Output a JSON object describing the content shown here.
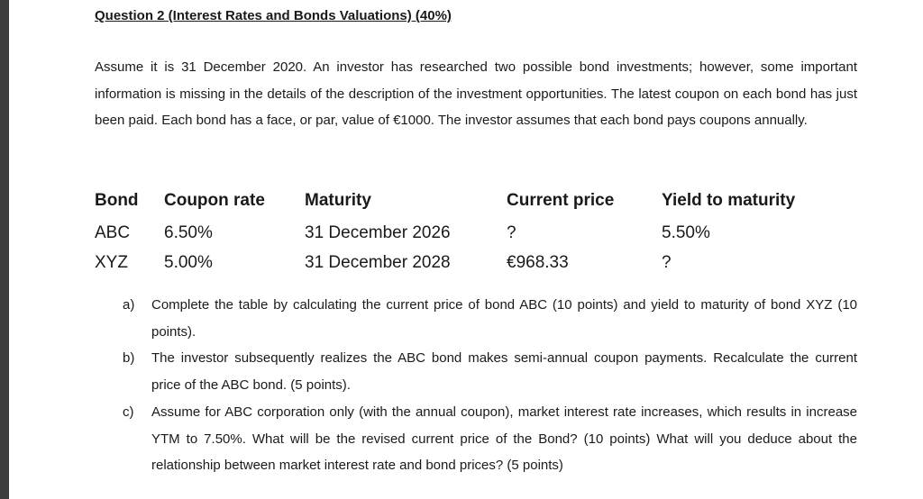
{
  "heading": "Question 2 (Interest Rates and Bonds Valuations) (40%)",
  "intro": "Assume it is 31 December 2020. An investor has researched two possible bond investments; however, some important information is missing in the details of the description of the investment opportunities. The latest coupon on each bond has just been paid. Each bond has a face, or par, value of €1000. The investor assumes that each bond pays coupons annually.",
  "table": {
    "headers": [
      "Bond",
      "Coupon rate",
      "Maturity",
      "Current price",
      "Yield to maturity"
    ],
    "rows": [
      [
        "ABC",
        "6.50%",
        "31 December 2026",
        "?",
        "5.50%"
      ],
      [
        "XYZ",
        "5.00%",
        "31 December 2028",
        "€968.33",
        "?"
      ]
    ]
  },
  "questions": [
    {
      "letter": "a)",
      "text": "Complete the table by calculating the current price of bond ABC (10 points) and yield to maturity of bond XYZ (10 points)."
    },
    {
      "letter": "b)",
      "text": "The investor subsequently realizes the ABC bond makes semi-annual coupon payments. Recalculate the current price of the ABC bond. (5 points)."
    },
    {
      "letter": "c)",
      "text": "Assume for ABC corporation only (with the annual coupon), market interest rate increases, which results in increase YTM to 7.50%. What will be the revised current price of the Bond? (10 points) What will you deduce about the relationship between market interest rate and bond prices? (5 points)"
    }
  ]
}
